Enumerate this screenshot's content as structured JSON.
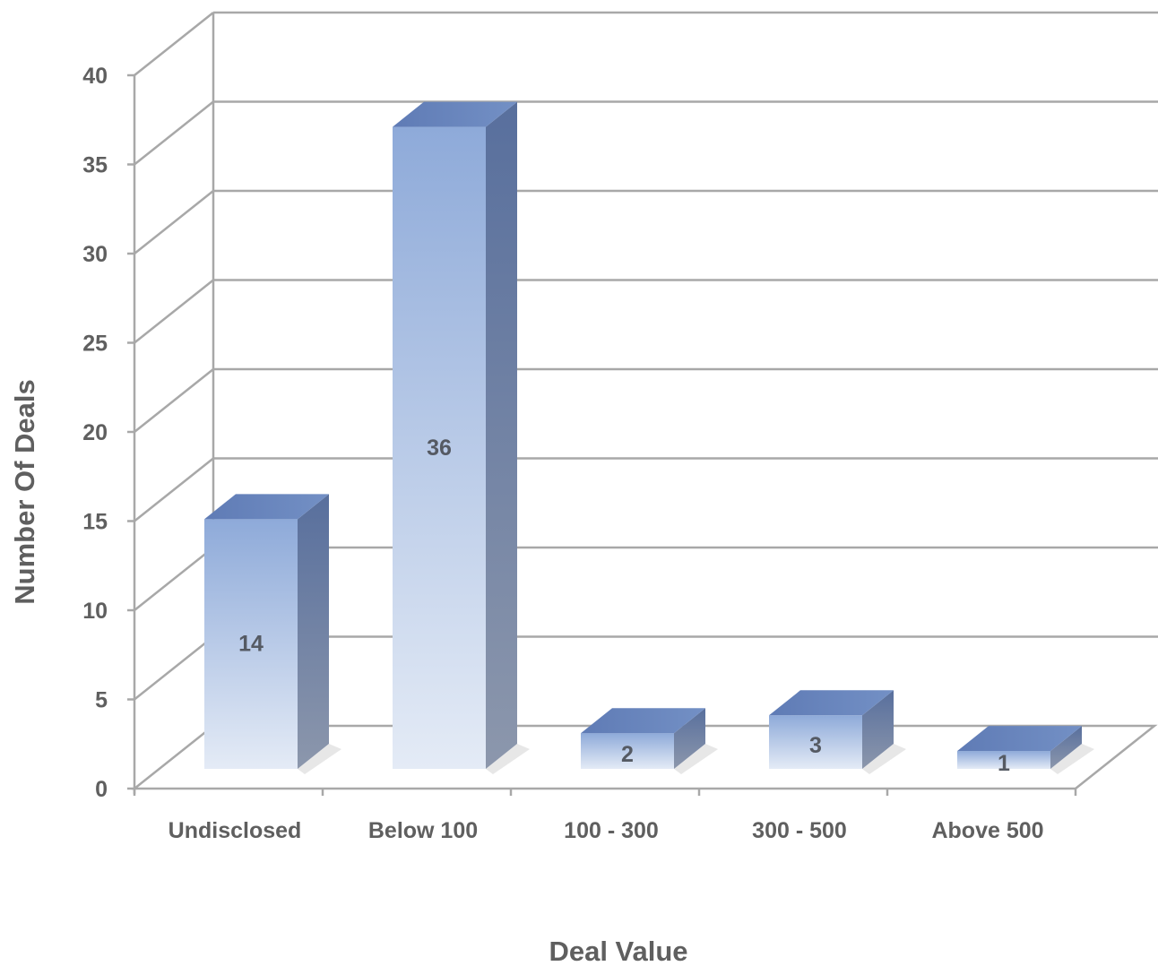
{
  "chart_data": {
    "type": "bar",
    "style": "3d-column",
    "categories": [
      "Undisclosed",
      "Below 100",
      "100 - 300",
      "300 - 500",
      "Above 500"
    ],
    "values": [
      14,
      36,
      2,
      3,
      1
    ],
    "data_labels": [
      "14",
      "36",
      "2",
      "3",
      "1"
    ],
    "xlabel": "Deal Value",
    "ylabel": "Number Of Deals",
    "ylim": [
      0,
      40
    ],
    "yticks": [
      0,
      5,
      10,
      15,
      20,
      25,
      30,
      35,
      40
    ],
    "ytick_labels": [
      "0",
      "5",
      "10",
      "15",
      "20",
      "25",
      "30",
      "35",
      "40"
    ],
    "grid": true,
    "legend": "none"
  },
  "colors": {
    "bar_front_top": "#8eaad9",
    "bar_front_bottom": "#e4ebf6",
    "bar_top": "#6c87bd",
    "bar_side_top": "#586f9d",
    "bar_side_bottom": "#8c97ac",
    "grid": "#a8a8a8",
    "axis_text": "#5f5f5f"
  }
}
